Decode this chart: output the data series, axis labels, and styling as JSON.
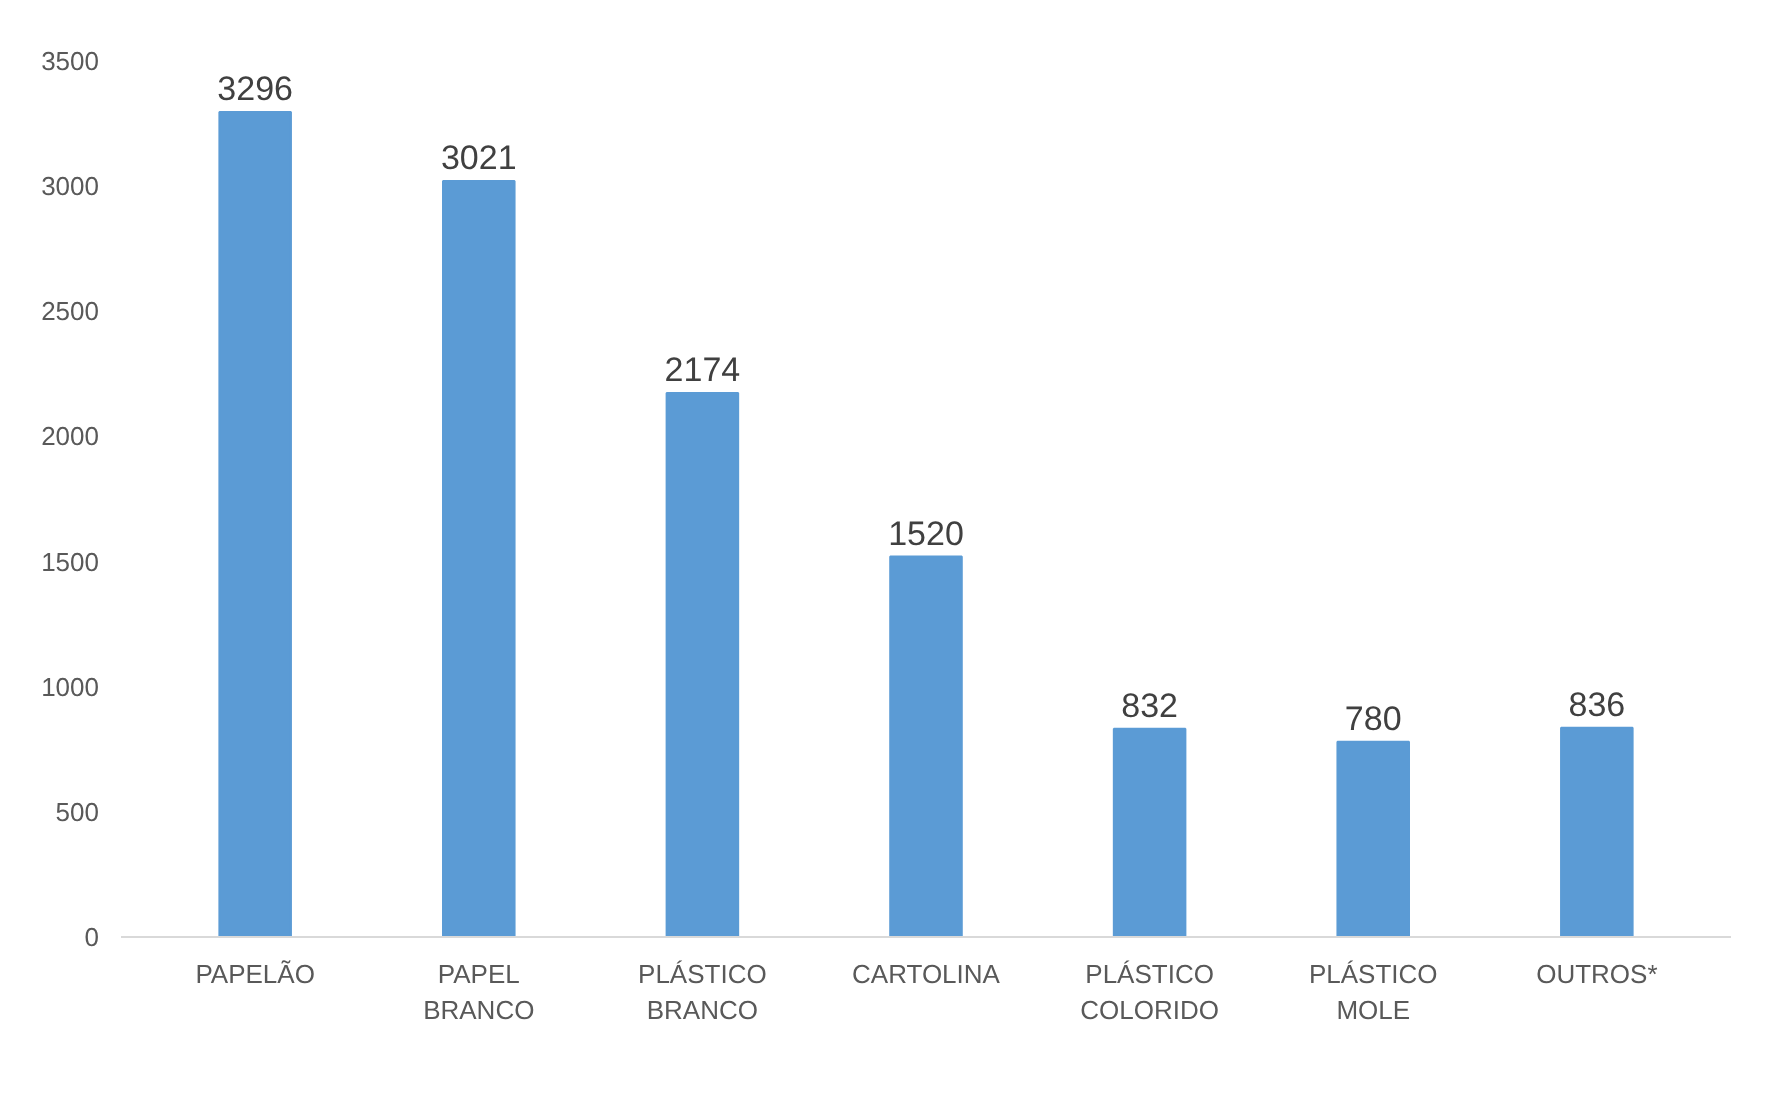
{
  "chart_data": {
    "type": "bar",
    "categories": [
      "PAPELÃO",
      "PAPEL\nBRANCO",
      "PLÁSTICO\nBRANCO",
      "CARTOLINA",
      "PLÁSTICO\nCOLORIDO",
      "PLÁSTICO\nMOLE",
      "OUTROS*"
    ],
    "values": [
      3296,
      3021,
      2174,
      1520,
      832,
      780,
      836
    ],
    "color": "#5b9bd5",
    "ylim": [
      0,
      3500
    ],
    "yticks": [
      0,
      500,
      1000,
      1500,
      2000,
      2500,
      3000,
      3500
    ],
    "data_labels": true,
    "grid": false
  }
}
